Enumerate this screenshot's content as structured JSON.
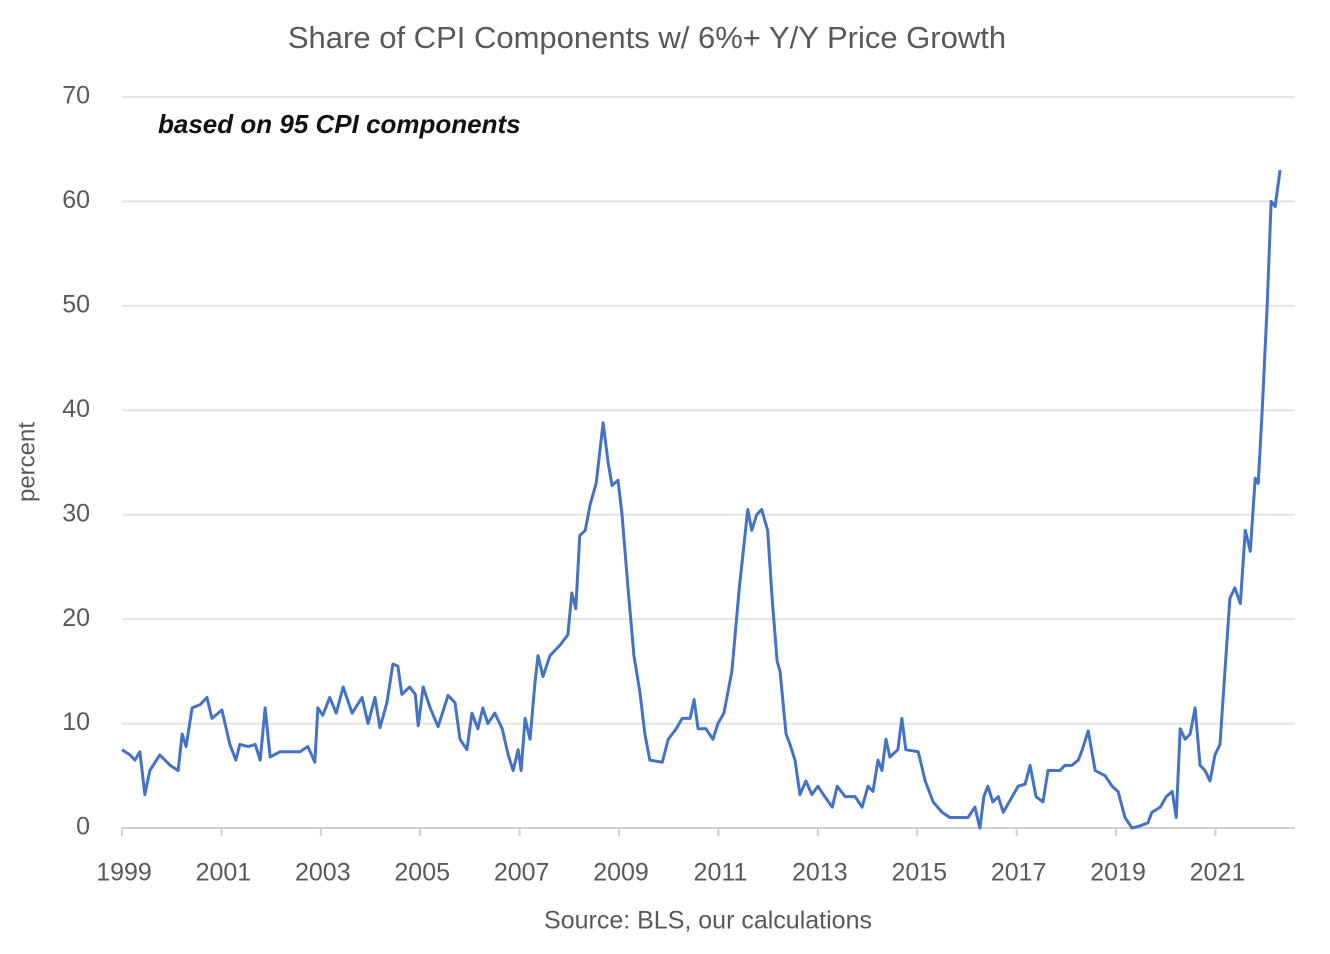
{
  "chart_data": {
    "type": "line",
    "title": "Share of CPI Components w/ 6%+ Y/Y Price Growth",
    "annotation": "based on 95 CPI components",
    "y_label": "percent",
    "x_label": "Source: BLS, our calculations",
    "xlim": [
      1999,
      2022.6
    ],
    "xticks": [
      1999,
      2001,
      2003,
      2005,
      2007,
      2009,
      2011,
      2013,
      2015,
      2017,
      2019,
      2021
    ],
    "ylim": [
      0,
      70
    ],
    "yticks": [
      0,
      10,
      20,
      30,
      40,
      50,
      60,
      70
    ],
    "grid": true,
    "x": [
      1999.0,
      1999.16,
      1999.26,
      1999.36,
      1999.46,
      1999.56,
      1999.76,
      1999.97,
      2000.13,
      2000.21,
      2000.29,
      2000.41,
      2000.57,
      2000.71,
      2000.81,
      2001.01,
      2001.17,
      2001.29,
      2001.37,
      2001.54,
      2001.68,
      2001.78,
      2001.88,
      2001.98,
      2002.18,
      2002.58,
      2002.74,
      2002.88,
      2002.94,
      2003.04,
      2003.18,
      2003.31,
      2003.45,
      2003.63,
      2003.83,
      2003.95,
      2004.09,
      2004.19,
      2004.33,
      2004.45,
      2004.55,
      2004.63,
      2004.79,
      2004.9,
      2004.96,
      2005.06,
      2005.2,
      2005.36,
      2005.56,
      2005.7,
      2005.8,
      2005.94,
      2006.04,
      2006.16,
      2006.26,
      2006.36,
      2006.5,
      2006.65,
      2006.77,
      2006.87,
      2006.97,
      2007.03,
      2007.11,
      2007.21,
      2007.31,
      2007.37,
      2007.47,
      2007.61,
      2007.81,
      2007.97,
      2008.05,
      2008.13,
      2008.21,
      2008.32,
      2008.42,
      2008.54,
      2008.68,
      2008.78,
      2008.86,
      2008.98,
      2009.06,
      2009.18,
      2009.3,
      2009.42,
      2009.52,
      2009.62,
      2009.87,
      2009.99,
      2010.15,
      2010.27,
      2010.43,
      2010.51,
      2010.59,
      2010.75,
      2010.89,
      2010.99,
      2011.11,
      2011.27,
      2011.42,
      2011.59,
      2011.67,
      2011.77,
      2011.87,
      2011.99,
      2012.08,
      2012.18,
      2012.24,
      2012.36,
      2012.44,
      2012.54,
      2012.64,
      2012.76,
      2012.88,
      2013.0,
      2013.14,
      2013.29,
      2013.39,
      2013.55,
      2013.75,
      2013.89,
      2014.01,
      2014.11,
      2014.21,
      2014.29,
      2014.37,
      2014.45,
      2014.61,
      2014.69,
      2014.77,
      2015.02,
      2015.16,
      2015.32,
      2015.5,
      2015.66,
      2016.02,
      2016.16,
      2016.26,
      2016.34,
      2016.42,
      2016.52,
      2016.63,
      2016.73,
      2016.91,
      2017.03,
      2017.17,
      2017.27,
      2017.39,
      2017.53,
      2017.63,
      2017.87,
      2017.97,
      2018.11,
      2018.24,
      2018.32,
      2018.44,
      2018.58,
      2018.78,
      2018.92,
      2019.04,
      2019.18,
      2019.32,
      2019.48,
      2019.64,
      2019.72,
      2019.89,
      2020.01,
      2020.13,
      2020.21,
      2020.29,
      2020.39,
      2020.49,
      2020.59,
      2020.69,
      2020.79,
      2020.89,
      2020.99,
      2021.09,
      2021.19,
      2021.29,
      2021.39,
      2021.5,
      2021.6,
      2021.7,
      2021.8,
      2021.86,
      2021.94,
      2022.04,
      2022.12,
      2022.2,
      2022.3
    ],
    "series": [
      {
        "color": "#4472c4",
        "values": [
          7.5,
          7,
          6.5,
          7.3,
          3.2,
          5.5,
          7,
          6,
          5.5,
          9,
          7.8,
          11.5,
          11.8,
          12.5,
          10.5,
          11.3,
          8,
          6.5,
          8,
          7.8,
          8,
          6.5,
          11.5,
          6.8,
          7.3,
          7.3,
          7.8,
          6.3,
          11.5,
          10.8,
          12.5,
          11,
          13.5,
          11,
          12.5,
          10,
          12.5,
          9.6,
          12,
          15.7,
          15.5,
          12.8,
          13.5,
          12.8,
          9.8,
          13.5,
          11.5,
          9.7,
          12.7,
          12,
          8.5,
          7.5,
          11,
          9.5,
          11.5,
          10,
          11,
          9.5,
          7,
          5.5,
          7.5,
          5.5,
          10.5,
          8.5,
          14,
          16.5,
          14.5,
          16.5,
          17.5,
          18.5,
          22.5,
          21,
          28,
          28.5,
          31,
          33,
          38.8,
          35,
          32.8,
          33.3,
          30,
          23,
          16.5,
          13,
          9,
          6.5,
          6.3,
          8.5,
          9.5,
          10.5,
          10.5,
          12.3,
          9.5,
          9.5,
          8.5,
          10,
          11,
          15,
          23,
          30.5,
          28.5,
          30,
          30.5,
          28.5,
          22,
          16,
          15,
          9,
          8,
          6.5,
          3.2,
          4.5,
          3.2,
          4,
          3,
          2,
          4,
          3,
          3,
          2,
          4,
          3.5,
          6.5,
          5.5,
          8.5,
          6.8,
          7.5,
          10.5,
          7.5,
          7.3,
          4.5,
          2.5,
          1.5,
          1,
          1,
          2,
          0,
          3,
          4,
          2.5,
          3,
          1.5,
          3,
          4,
          4.2,
          6,
          3,
          2.5,
          5.5,
          5.5,
          6,
          6,
          6.5,
          7.5,
          9.3,
          5.5,
          5,
          4,
          3.5,
          1,
          0,
          0.2,
          0.5,
          1.5,
          2,
          3,
          3.5,
          1,
          9.5,
          8.5,
          9,
          11.5,
          6,
          5.5,
          4.5,
          7,
          8,
          15,
          22,
          23,
          21.5,
          28.5,
          26.5,
          33.5,
          33,
          40,
          50,
          60,
          59.5,
          63
        ]
      }
    ]
  }
}
